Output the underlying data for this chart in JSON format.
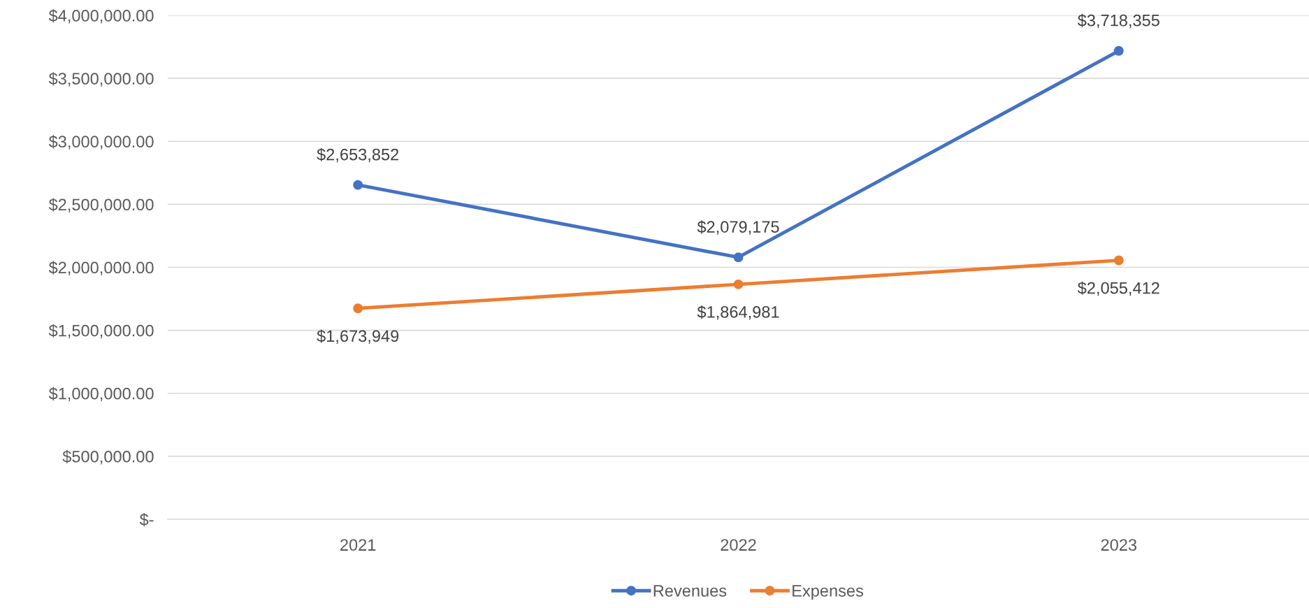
{
  "chart_data": {
    "type": "line",
    "categories": [
      "2021",
      "2022",
      "2023"
    ],
    "series": [
      {
        "name": "Revenues",
        "color": "#4472c4",
        "values": [
          2653852,
          2079175,
          3718355
        ],
        "value_labels": [
          "$2,653,852",
          "$2,079,175",
          "$3,718,355"
        ]
      },
      {
        "name": "Expenses",
        "color": "#ed7d31",
        "values": [
          1673949,
          1864981,
          2055412
        ],
        "value_labels": [
          "$1,673,949",
          "$1,864,981",
          "$2,055,412"
        ]
      }
    ],
    "ylim": [
      0,
      4000000
    ],
    "yticks": [
      {
        "value": 0,
        "label": "$-"
      },
      {
        "value": 500000,
        "label": "$500,000.00"
      },
      {
        "value": 1000000,
        "label": "$1,000,000.00"
      },
      {
        "value": 1500000,
        "label": "$1,500,000.00"
      },
      {
        "value": 2000000,
        "label": "$2,000,000.00"
      },
      {
        "value": 2500000,
        "label": "$2,500,000.00"
      },
      {
        "value": 3000000,
        "label": "$3,000,000.00"
      },
      {
        "value": 3500000,
        "label": "$3,500,000.00"
      },
      {
        "value": 4000000,
        "label": "$4,000,000.00"
      }
    ],
    "grid": "y",
    "legend": "bottom",
    "marker": "circle",
    "line_style": "solid"
  }
}
